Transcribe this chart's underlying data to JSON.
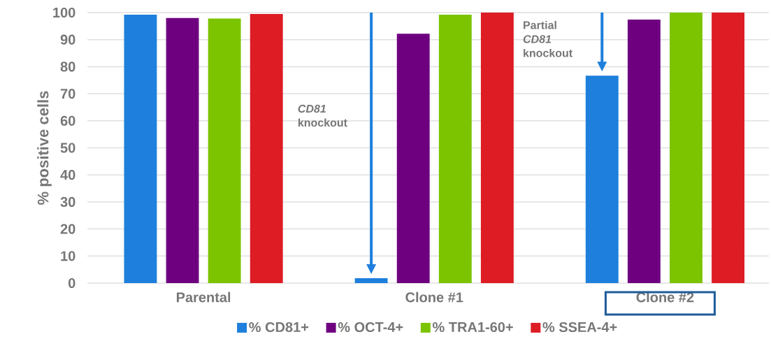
{
  "chart_data": {
    "type": "bar",
    "ylabel": "% positive cells",
    "categories": [
      "Parental",
      "Clone #1",
      "Clone #2"
    ],
    "series": [
      {
        "name": "% CD81+",
        "color": "#1e7fdc",
        "values": [
          99.2,
          1.8,
          76.7
        ]
      },
      {
        "name": "% OCT-4+",
        "color": "#6e0080",
        "values": [
          98,
          92.2,
          97.4
        ]
      },
      {
        "name": "% TRA1-60+",
        "color": "#7cc400",
        "values": [
          97.8,
          99.2,
          100
        ]
      },
      {
        "name": "% SSEA-4+",
        "color": "#dd1c24",
        "values": [
          99.5,
          100,
          100
        ]
      }
    ],
    "ylim": [
      0,
      100
    ],
    "yticks": [
      0,
      10,
      20,
      30,
      40,
      50,
      60,
      70,
      80,
      90,
      100
    ],
    "grid": "y",
    "legend": "bottom",
    "annotations": [
      "*CD81* knockout",
      "Partial *CD81* knockout"
    ]
  }
}
